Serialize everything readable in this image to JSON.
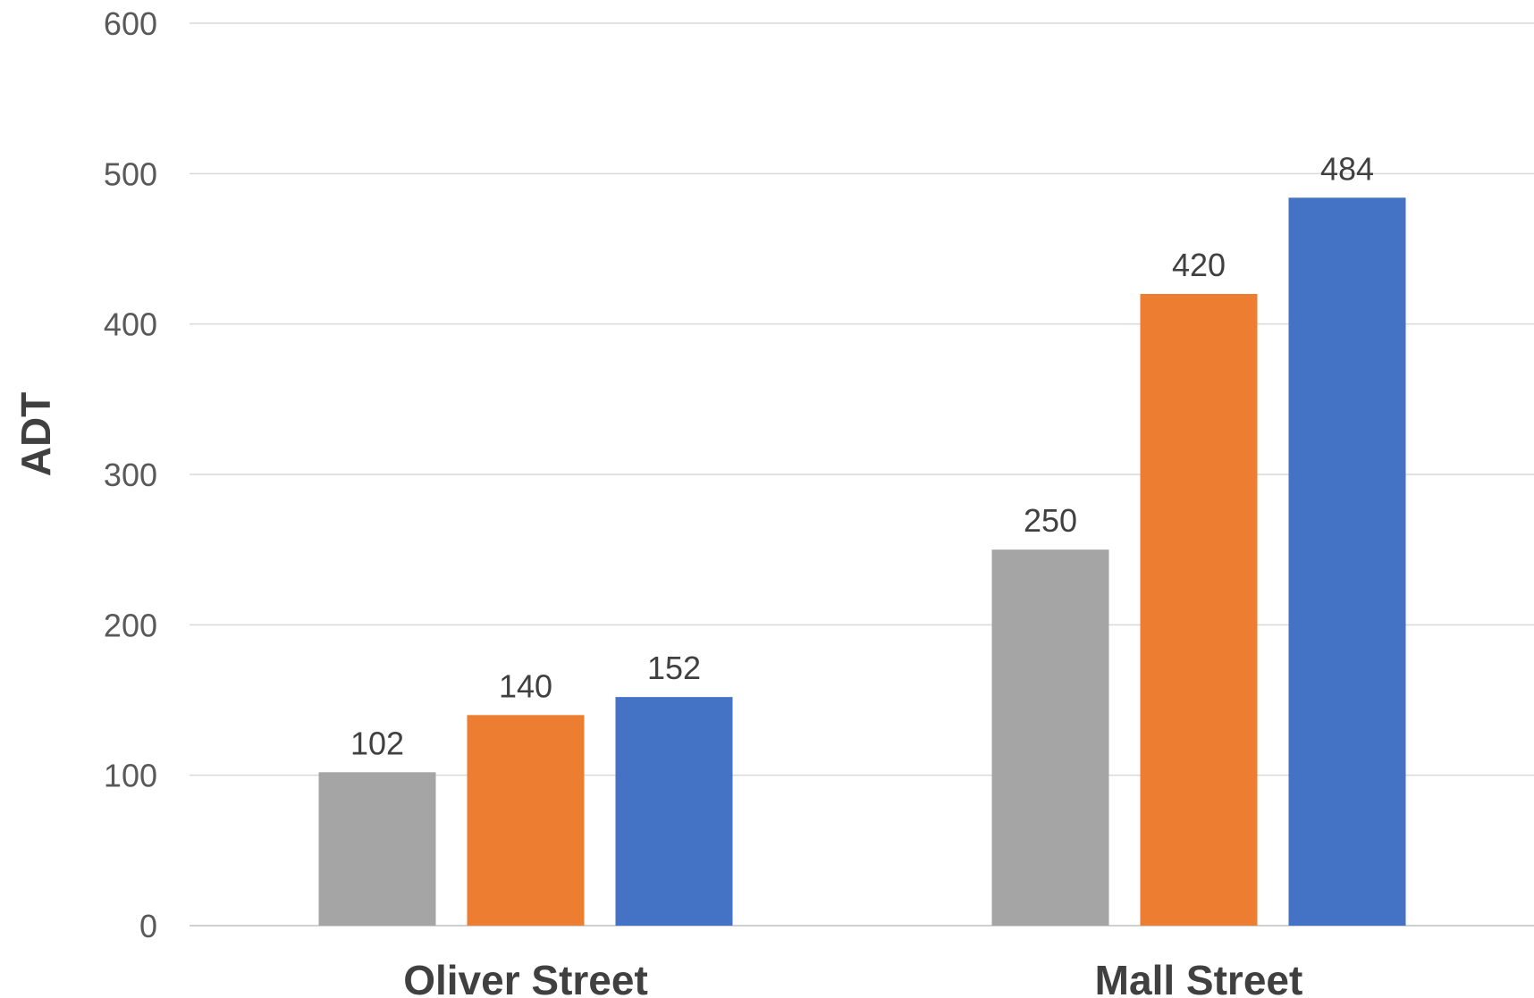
{
  "chart_data": {
    "type": "bar",
    "title": "",
    "xlabel": "",
    "ylabel": "ADT",
    "ylim": [
      0,
      600
    ],
    "yticks": [
      0,
      100,
      200,
      300,
      400,
      500,
      600
    ],
    "grid": true,
    "legend": "none",
    "categories": [
      "Oliver Street",
      "Mall Street"
    ],
    "series": [
      {
        "color": "#a5a5a5",
        "values": [
          102,
          250
        ]
      },
      {
        "color": "#ed7d31",
        "values": [
          140,
          420
        ]
      },
      {
        "color": "#4472c4",
        "values": [
          152,
          484
        ]
      }
    ]
  }
}
